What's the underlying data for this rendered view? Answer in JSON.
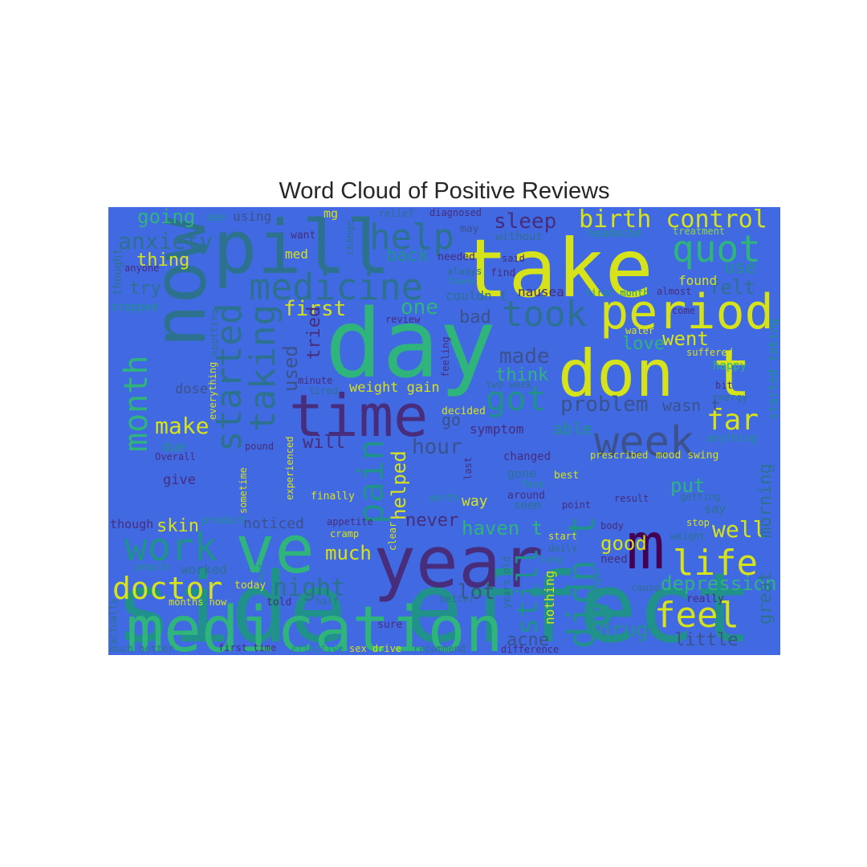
{
  "title": "Word Cloud of Positive Reviews",
  "background_color": "#4169e1",
  "palette": {
    "y": "#d6e21a",
    "g": "#2fb47c",
    "t": "#21918c",
    "b": "#2c728e",
    "s": "#3b528b",
    "p": "#472d7b",
    "d": "#440154",
    "l": "#8fd744"
  },
  "words": [
    {
      "text": "side effect",
      "c": "t"
    },
    {
      "text": "day",
      "c": "g"
    },
    {
      "text": "take",
      "c": "y"
    },
    {
      "text": "pill",
      "c": "b"
    },
    {
      "text": "now",
      "c": "b"
    },
    {
      "text": "year",
      "c": "p"
    },
    {
      "text": "medication",
      "c": "g"
    },
    {
      "text": "time",
      "c": "p"
    },
    {
      "text": "ve",
      "c": "g"
    },
    {
      "text": "don t",
      "c": "y"
    },
    {
      "text": "m",
      "c": "d"
    },
    {
      "text": "s",
      "c": "t"
    },
    {
      "text": "period",
      "c": "y"
    },
    {
      "text": "week",
      "c": "s"
    },
    {
      "text": "medicine",
      "c": "b"
    },
    {
      "text": "month",
      "c": "g"
    },
    {
      "text": "work",
      "c": "t"
    },
    {
      "text": "started",
      "c": "b"
    },
    {
      "text": "taking",
      "c": "b"
    },
    {
      "text": "help",
      "c": "b"
    },
    {
      "text": "took",
      "c": "b"
    },
    {
      "text": "quot",
      "c": "g"
    },
    {
      "text": "didn t",
      "c": "t"
    },
    {
      "text": "life",
      "c": "y"
    },
    {
      "text": "feel",
      "c": "y"
    },
    {
      "text": "doctor",
      "c": "y"
    },
    {
      "text": "got",
      "c": "t"
    },
    {
      "text": "pain",
      "c": "t"
    },
    {
      "text": "birth control",
      "c": "y"
    },
    {
      "text": "far",
      "c": "y"
    },
    {
      "text": "still",
      "c": "t"
    },
    {
      "text": "problem",
      "c": "s"
    },
    {
      "text": "night",
      "c": "b"
    },
    {
      "text": "anxiety",
      "c": "b"
    },
    {
      "text": "make",
      "c": "y"
    },
    {
      "text": "hour",
      "c": "s"
    },
    {
      "text": "well",
      "c": "y"
    },
    {
      "text": "depression",
      "c": "g"
    },
    {
      "text": "first",
      "c": "y"
    },
    {
      "text": "one",
      "c": "g"
    },
    {
      "text": "sleep",
      "c": "p"
    },
    {
      "text": "going",
      "c": "g"
    },
    {
      "text": "made",
      "c": "s"
    },
    {
      "text": "much",
      "c": "y"
    },
    {
      "text": "went",
      "c": "y"
    },
    {
      "text": "drug",
      "c": "t"
    },
    {
      "text": "lot",
      "c": "s"
    },
    {
      "text": "used",
      "c": "s"
    },
    {
      "text": "tried",
      "c": "p"
    },
    {
      "text": "helped",
      "c": "y"
    },
    {
      "text": "think",
      "c": "g"
    },
    {
      "text": "put",
      "c": "g"
    },
    {
      "text": "will",
      "c": "p"
    },
    {
      "text": "haven t",
      "c": "g"
    },
    {
      "text": "good",
      "c": "y"
    },
    {
      "text": "great",
      "c": "b"
    },
    {
      "text": "little",
      "c": "s"
    },
    {
      "text": "morning",
      "c": "b"
    },
    {
      "text": "felt",
      "c": "b"
    },
    {
      "text": "thing",
      "c": "y"
    },
    {
      "text": "back",
      "c": "t"
    },
    {
      "text": "bad",
      "c": "s"
    },
    {
      "text": "love",
      "c": "g"
    },
    {
      "text": "never",
      "c": "p"
    },
    {
      "text": "skin",
      "c": "y"
    },
    {
      "text": "try",
      "c": "b"
    },
    {
      "text": "acne",
      "c": "s"
    },
    {
      "text": "able",
      "c": "t"
    },
    {
      "text": "use",
      "c": "t"
    },
    {
      "text": "weight gain",
      "c": "y"
    },
    {
      "text": "nothing",
      "c": "y"
    },
    {
      "text": "wasn t",
      "c": "s"
    },
    {
      "text": "found",
      "c": "y"
    },
    {
      "text": "go",
      "c": "s"
    },
    {
      "text": "way",
      "c": "y"
    },
    {
      "text": "give",
      "c": "p"
    },
    {
      "text": "noticed",
      "c": "s"
    },
    {
      "text": "dose",
      "c": "s"
    },
    {
      "text": "nausea",
      "c": "p"
    },
    {
      "text": "symptom",
      "c": "p"
    },
    {
      "text": "couldn t",
      "c": "b"
    },
    {
      "text": "mood swing",
      "c": "y"
    },
    {
      "text": "changed",
      "c": "p"
    },
    {
      "text": "prescribed",
      "c": "y"
    },
    {
      "text": "using",
      "c": "s"
    },
    {
      "text": "see",
      "c": "t"
    },
    {
      "text": "mg",
      "c": "y"
    },
    {
      "text": "headache",
      "c": "t"
    },
    {
      "text": "treatment",
      "c": "l"
    },
    {
      "text": "Overall",
      "c": "p"
    },
    {
      "text": "due",
      "c": "t"
    },
    {
      "text": "finally",
      "c": "y"
    },
    {
      "text": "worked",
      "c": "b"
    },
    {
      "text": "today",
      "c": "y"
    },
    {
      "text": "told",
      "c": "p"
    },
    {
      "text": "months now",
      "c": "y"
    },
    {
      "text": "first time",
      "c": "p"
    },
    {
      "text": "sex drive",
      "c": "y"
    },
    {
      "text": "difference",
      "c": "p"
    },
    {
      "text": "much better",
      "c": "b"
    },
    {
      "text": "effective",
      "c": "t"
    },
    {
      "text": "recommend",
      "c": "b"
    },
    {
      "text": "sure",
      "c": "p"
    },
    {
      "text": "better",
      "c": "b"
    },
    {
      "text": "review",
      "c": "p"
    },
    {
      "text": "relief",
      "c": "b"
    },
    {
      "text": "diagnosed",
      "c": "p"
    },
    {
      "text": "may",
      "c": "s"
    },
    {
      "text": "without",
      "c": "b"
    },
    {
      "text": "said",
      "c": "p"
    },
    {
      "text": "needed",
      "c": "p"
    },
    {
      "text": "always",
      "c": "b"
    },
    {
      "text": "Thank",
      "c": "t"
    },
    {
      "text": "find",
      "c": "p"
    },
    {
      "text": "want",
      "c": "p"
    },
    {
      "text": "med",
      "c": "y"
    },
    {
      "text": "anyone",
      "c": "p"
    },
    {
      "text": "thought",
      "c": "b"
    },
    {
      "text": "stopped",
      "c": "t"
    },
    {
      "text": "people",
      "c": "t"
    },
    {
      "text": "actually",
      "c": "b"
    },
    {
      "text": "cramp",
      "c": "y"
    },
    {
      "text": "appetite",
      "c": "p"
    },
    {
      "text": "half",
      "c": "b"
    },
    {
      "text": "shot",
      "c": "t"
    },
    {
      "text": "clear",
      "c": "y"
    },
    {
      "text": "pound",
      "c": "p"
    },
    {
      "text": "sometime",
      "c": "y"
    },
    {
      "text": "product",
      "c": "t"
    },
    {
      "text": "though",
      "c": "p"
    },
    {
      "text": "experienced",
      "c": "y"
    },
    {
      "text": "everything",
      "c": "y"
    },
    {
      "text": "spotting",
      "c": "b"
    },
    {
      "text": "minute",
      "c": "p"
    },
    {
      "text": "tired",
      "c": "b"
    },
    {
      "text": "feeling",
      "c": "p"
    },
    {
      "text": "decided",
      "c": "y"
    },
    {
      "text": "last",
      "c": "p"
    },
    {
      "text": "two week",
      "c": "b"
    },
    {
      "text": "years old",
      "c": "b"
    },
    {
      "text": "gone",
      "c": "b"
    },
    {
      "text": "around",
      "c": "p"
    },
    {
      "text": "face",
      "c": "t"
    },
    {
      "text": "seem",
      "c": "b"
    },
    {
      "text": "best",
      "c": "y"
    },
    {
      "text": "point",
      "c": "p"
    },
    {
      "text": "result",
      "c": "p"
    },
    {
      "text": "getting",
      "c": "b"
    },
    {
      "text": "stop",
      "c": "y"
    },
    {
      "text": "weight",
      "c": "b"
    },
    {
      "text": "body",
      "c": "p"
    },
    {
      "text": "daily",
      "c": "b"
    },
    {
      "text": "start",
      "c": "y"
    },
    {
      "text": "long",
      "c": "t"
    },
    {
      "text": "need",
      "c": "p"
    },
    {
      "text": "longer",
      "c": "t"
    },
    {
      "text": "cause",
      "c": "b"
    },
    {
      "text": "really",
      "c": "p"
    },
    {
      "text": "almost",
      "c": "p"
    },
    {
      "text": "come",
      "c": "p"
    },
    {
      "text": "suffered",
      "c": "y"
    },
    {
      "text": "happy",
      "c": "g"
    },
    {
      "text": "bit",
      "c": "p"
    },
    {
      "text": "energy",
      "c": "b"
    },
    {
      "text": "anything",
      "c": "t"
    },
    {
      "text": "say",
      "c": "b"
    },
    {
      "text": "water",
      "c": "y"
    },
    {
      "text": "first month",
      "c": "t"
    },
    {
      "text": "started taking",
      "c": "t"
    },
    {
      "text": "change",
      "c": "b"
    },
    {
      "text": "worth",
      "c": "t"
    }
  ]
}
